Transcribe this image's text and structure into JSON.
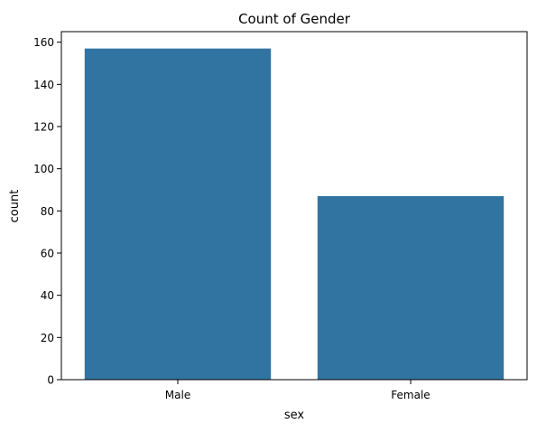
{
  "chart_data": {
    "type": "bar",
    "title": "Count of Gender",
    "xlabel": "sex",
    "ylabel": "count",
    "categories": [
      "Male",
      "Female"
    ],
    "values": [
      157,
      87
    ],
    "ylim": [
      0,
      165
    ],
    "yticks": [
      0,
      20,
      40,
      60,
      80,
      100,
      120,
      140,
      160
    ],
    "grid": false,
    "legend": "none",
    "bar_color": "#3274a1"
  }
}
